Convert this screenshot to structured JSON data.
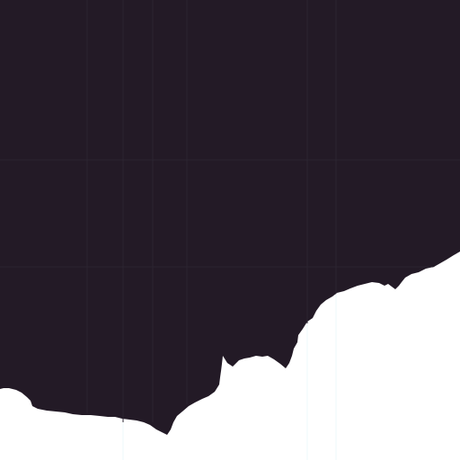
{
  "map": {
    "sea_color": "#231a26",
    "land_color": "#ffffff",
    "grid_color_sea": "#2b2430",
    "grid_color_land": "#eef8fb"
  }
}
